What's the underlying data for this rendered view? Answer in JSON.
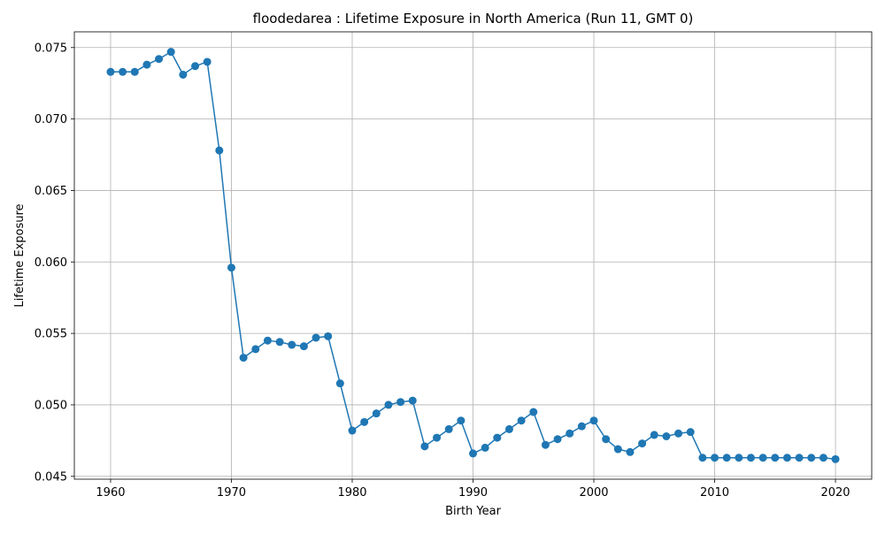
{
  "chart_data": {
    "type": "line",
    "title": "floodedarea : Lifetime Exposure in North America (Run 11, GMT 0)",
    "xlabel": "Birth Year",
    "ylabel": "Lifetime Exposure",
    "xlim": [
      1957,
      2023
    ],
    "ylim": [
      0.0448,
      0.0761
    ],
    "xticks": [
      1960,
      1970,
      1980,
      1990,
      2000,
      2010,
      2020
    ],
    "xtick_labels": [
      "1960",
      "1970",
      "1980",
      "1990",
      "2000",
      "2010",
      "2020"
    ],
    "yticks": [
      0.045,
      0.05,
      0.055,
      0.06,
      0.065,
      0.07,
      0.075
    ],
    "ytick_labels": [
      "0.045",
      "0.050",
      "0.055",
      "0.060",
      "0.065",
      "0.070",
      "0.075"
    ],
    "grid": true,
    "series": [
      {
        "color": "#1f77b4",
        "marker": "circle",
        "x": [
          1960,
          1961,
          1962,
          1963,
          1964,
          1965,
          1966,
          1967,
          1968,
          1969,
          1970,
          1971,
          1972,
          1973,
          1974,
          1975,
          1976,
          1977,
          1978,
          1979,
          1980,
          1981,
          1982,
          1983,
          1984,
          1985,
          1986,
          1987,
          1988,
          1989,
          1990,
          1991,
          1992,
          1993,
          1994,
          1995,
          1996,
          1997,
          1998,
          1999,
          2000,
          2001,
          2002,
          2003,
          2004,
          2005,
          2006,
          2007,
          2008,
          2009,
          2010,
          2011,
          2012,
          2013,
          2014,
          2015,
          2016,
          2017,
          2018,
          2019,
          2020
        ],
        "values": [
          0.0733,
          0.0733,
          0.0733,
          0.0738,
          0.0742,
          0.0747,
          0.0731,
          0.0737,
          0.074,
          0.0678,
          0.0596,
          0.0533,
          0.0539,
          0.0545,
          0.0544,
          0.0542,
          0.0541,
          0.0547,
          0.0548,
          0.0515,
          0.0482,
          0.0488,
          0.0494,
          0.05,
          0.0502,
          0.0503,
          0.0471,
          0.0477,
          0.0483,
          0.0489,
          0.0466,
          0.047,
          0.0477,
          0.0483,
          0.0489,
          0.0495,
          0.0472,
          0.0476,
          0.048,
          0.0485,
          0.0489,
          0.0476,
          0.0469,
          0.0467,
          0.0473,
          0.0479,
          0.0478,
          0.048,
          0.0481,
          0.0463,
          0.0463,
          0.0463,
          0.0463,
          0.0463,
          0.0463,
          0.0463,
          0.0463,
          0.0463,
          0.0463,
          0.0463,
          0.0462
        ]
      }
    ]
  }
}
